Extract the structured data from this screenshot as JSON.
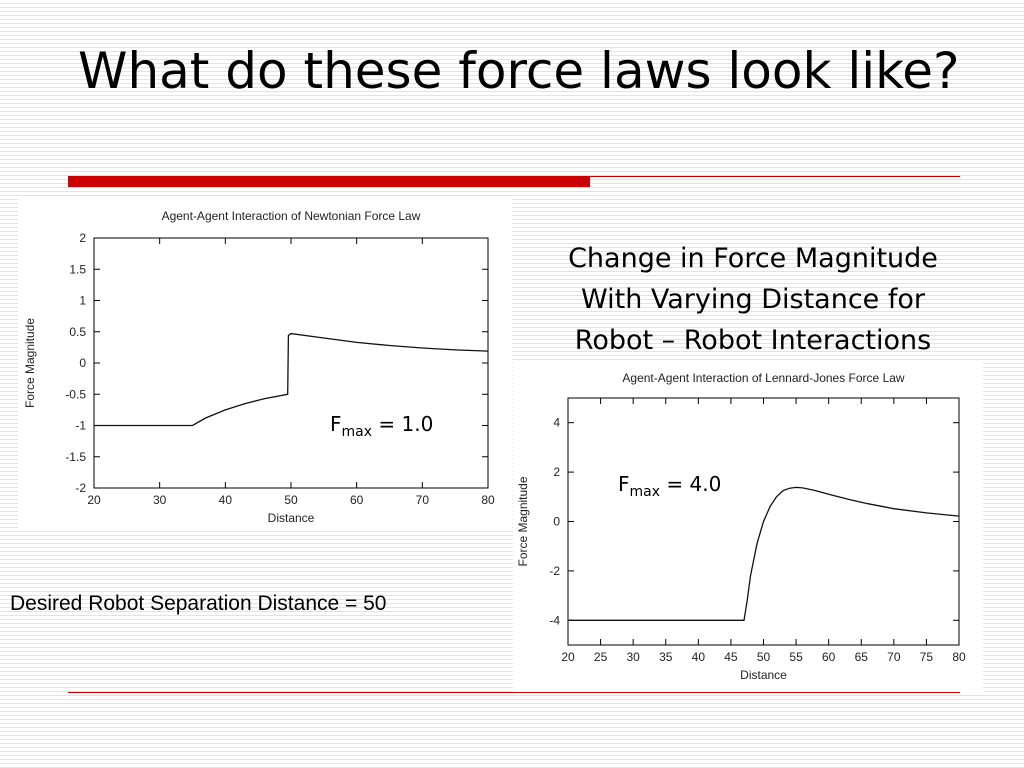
{
  "slide": {
    "title": "What do these force laws look like?",
    "description_lines": [
      "Change in Force Magnitude",
      "With Varying Distance for",
      "Robot – Robot Interactions"
    ],
    "footnote": "Desired Robot Separation Distance = 50",
    "accent_color": "#cc0000"
  },
  "annotations": [
    {
      "prefix": "F",
      "subscript": "max",
      "suffix": " = 1.0"
    },
    {
      "prefix": "F",
      "subscript": "max",
      "suffix": " = 4.0"
    }
  ],
  "chart_data": [
    {
      "type": "line",
      "title": "Agent-Agent Interaction of Newtonian Force Law",
      "xlabel": "Distance",
      "ylabel": "Force Magnitude",
      "xlim": [
        20,
        80
      ],
      "ylim": [
        -2,
        2
      ],
      "xticks": [
        20,
        30,
        40,
        50,
        60,
        70,
        80
      ],
      "yticks": [
        -2,
        -1.5,
        -1,
        -0.5,
        0,
        0.5,
        1,
        1.5,
        2
      ],
      "grid": false,
      "legend": "none",
      "series": [
        {
          "x": [
            20,
            35,
            37,
            40,
            43,
            46,
            49.5,
            49.6,
            50,
            55,
            60,
            65,
            70,
            75,
            80
          ],
          "y": [
            -1,
            -1,
            -0.88,
            -0.75,
            -0.65,
            -0.57,
            -0.5,
            0.44,
            0.47,
            0.4,
            0.33,
            0.28,
            0.24,
            0.21,
            0.19
          ]
        }
      ]
    },
    {
      "type": "line",
      "title": "Agent-Agent Interaction of Lennard-Jones Force Law",
      "xlabel": "Distance",
      "ylabel": "Force Magnitude",
      "xlim": [
        20,
        80
      ],
      "ylim": [
        -5,
        5
      ],
      "xticks": [
        20,
        25,
        30,
        35,
        40,
        45,
        50,
        55,
        60,
        65,
        70,
        75,
        80
      ],
      "yticks": [
        -4,
        -2,
        0,
        2,
        4
      ],
      "grid": false,
      "legend": "none",
      "series": [
        {
          "x": [
            20,
            47,
            47.5,
            48,
            49,
            50,
            51,
            52,
            53,
            54,
            55,
            56,
            58,
            60,
            63,
            66,
            70,
            75,
            80
          ],
          "y": [
            -4,
            -4,
            -3.2,
            -2.2,
            -0.9,
            0.0,
            0.6,
            1.0,
            1.25,
            1.35,
            1.38,
            1.36,
            1.25,
            1.1,
            0.9,
            0.72,
            0.52,
            0.35,
            0.22
          ]
        }
      ]
    }
  ]
}
